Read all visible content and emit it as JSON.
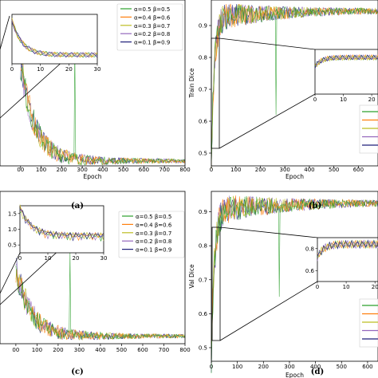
{
  "colors": {
    "series": [
      "#2ca02c",
      "#ff7f0e",
      "#bcbd22",
      "#9467bd",
      "#1f1f7a"
    ],
    "frame": "#000000"
  },
  "legend_labels": [
    "α=0.5 β=0.5",
    "α=0.4 β=0.6",
    "α=0.3 β=0.7",
    "α=0.2 β=0.8",
    "α=0.1 β=0.9"
  ],
  "chart_data": [
    {
      "type": "line",
      "panel": "a",
      "caption": "(a)",
      "xlabel": "Epoch",
      "ylabel": "",
      "xlim": [
        -100,
        800
      ],
      "xticks": [
        "00",
        "100",
        "200",
        "300",
        "400",
        "500",
        "600",
        "700",
        "800"
      ],
      "xtick_values": [
        0,
        100,
        200,
        300,
        400,
        500,
        600,
        700,
        800
      ],
      "yticks": [],
      "ylim": [
        0,
        1
      ],
      "legend": "top-right",
      "summary": {
        "start": 0.62,
        "mid_300": 0.08,
        "end": 0.03,
        "spike_epoch": 265,
        "spike_value": 0.72
      },
      "inset": {
        "xlim": [
          0,
          30
        ],
        "xticks": [
          "0",
          "10",
          "20",
          "30"
        ],
        "start": 0.9,
        "end": 0.55
      }
    },
    {
      "type": "line",
      "panel": "b",
      "caption": "(b)",
      "xlabel": "Epoch",
      "ylabel": "Train Dice",
      "xlim": [
        0,
        680
      ],
      "xticks": [
        "0",
        "100",
        "200",
        "300",
        "400",
        "500",
        "600"
      ],
      "xtick_values": [
        0,
        100,
        200,
        300,
        400,
        500,
        600
      ],
      "yticks": [
        "0.5",
        "0.6",
        "0.7",
        "0.8",
        "0.9"
      ],
      "ytick_values": [
        0.5,
        0.6,
        0.7,
        0.8,
        0.9
      ],
      "ylim": [
        0.46,
        0.98
      ],
      "summary": {
        "start": 0.5,
        "plateau": 0.95,
        "dip_epoch": 265,
        "dip_value": 0.62
      },
      "inset": {
        "xlim": [
          0,
          25
        ],
        "xticks": [
          "0",
          "10",
          "20"
        ]
      }
    },
    {
      "type": "line",
      "panel": "c",
      "caption": "(c)",
      "xlabel": "",
      "ylabel": "",
      "xlim": [
        -75,
        800
      ],
      "xticks": [
        "00",
        "100",
        "200",
        "300",
        "400",
        "500",
        "600",
        "700",
        "800"
      ],
      "xtick_values": [
        0,
        100,
        200,
        300,
        400,
        500,
        600,
        700,
        800
      ],
      "yticks": [],
      "ylim": [
        0,
        1
      ],
      "legend": "top-right",
      "summary": {
        "start": 0.5,
        "end": 0.05,
        "spike_epoch": 255,
        "spike_value": 0.6
      },
      "inset": {
        "xlim": [
          0,
          30
        ],
        "xticks": [
          "0",
          "10",
          "20",
          "30"
        ],
        "yticks": [
          "0.5",
          "1.0",
          "1.5"
        ],
        "ylim": [
          0.3,
          1.6
        ]
      }
    },
    {
      "type": "line",
      "panel": "d",
      "caption": "(d)",
      "xlabel": "Epoch",
      "ylabel": "Val Dice",
      "xlim": [
        0,
        640
      ],
      "xticks": [
        "0",
        "100",
        "200",
        "300",
        "400",
        "500",
        "600"
      ],
      "xtick_values": [
        0,
        100,
        200,
        300,
        400,
        500,
        600
      ],
      "yticks": [
        "0.5",
        "0.6",
        "0.7",
        "0.8",
        "0.9"
      ],
      "ytick_values": [
        0.5,
        0.6,
        0.7,
        0.8,
        0.9
      ],
      "ylim": [
        0.46,
        0.96
      ],
      "summary": {
        "start": 0.5,
        "plateau": 0.93,
        "dip_epoch": 260,
        "dip_value": 0.65
      },
      "inset": {
        "xlim": [
          0,
          25
        ],
        "xticks": [
          "0",
          "10",
          "20"
        ],
        "yticks": [
          "0.6",
          "0.8"
        ]
      }
    }
  ]
}
